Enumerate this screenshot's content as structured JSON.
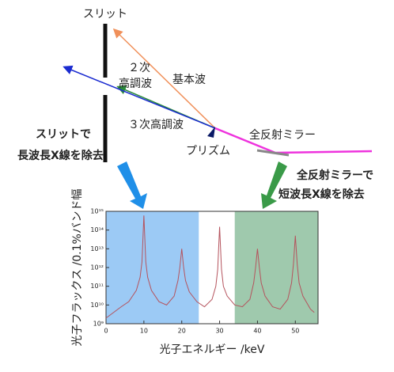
{
  "diagram": {
    "slit": "スリット",
    "ray_2nd": "２次",
    "ray_2nd_b": "高調波",
    "ray_fundamental": "基本波",
    "ray_3rd": "３次高調波",
    "mirror": "全反射ミラー",
    "prism": "プリズム",
    "note_slit_1": "スリットで",
    "note_slit_2": "長波長X線を除去",
    "note_mirror_1": "全反射ミラーで",
    "note_mirror_2": "短波長X線を除去"
  },
  "chart_data": {
    "type": "line",
    "xlabel": "光子エネルギー /keV",
    "ylabel": "光子フラックス /0.1%バンド幅",
    "log_y": true,
    "xlim": [
      0,
      56
    ],
    "ylim": [
      1000000000.0,
      1000000000000000.0
    ],
    "xticks": [
      0,
      10,
      20,
      30,
      40,
      50
    ],
    "yticks": [
      {
        "value": 1000000000.0,
        "label": "10⁹"
      },
      {
        "value": 10000000000.0,
        "label": "10¹⁰"
      },
      {
        "value": 100000000000.0,
        "label": "10¹¹"
      },
      {
        "value": 1000000000000.0,
        "label": "10¹²"
      },
      {
        "value": 10000000000000.0,
        "label": "10¹³"
      },
      {
        "value": 100000000000000.0,
        "label": "10¹⁴"
      },
      {
        "value": 1000000000000000.0,
        "label": "10¹⁵"
      }
    ],
    "regions": [
      {
        "from": 0,
        "to": 24.5,
        "color": "#9ccaf5"
      },
      {
        "from": 34,
        "to": 56,
        "color": "#9fc9ad"
      }
    ],
    "series": [
      {
        "color": "#b5535d",
        "x": [
          0,
          2,
          4,
          6,
          8,
          9,
          9.5,
          10,
          10.5,
          11,
          12,
          14,
          16,
          18,
          19,
          19.5,
          20,
          20.5,
          21,
          22,
          24,
          26,
          28,
          29,
          29.5,
          30,
          30.5,
          31,
          32,
          34,
          36,
          38,
          39,
          39.5,
          40,
          40.5,
          41,
          42,
          44,
          46,
          48,
          49,
          49.5,
          50,
          50.5,
          51,
          52,
          54,
          55
        ],
        "values": [
          2000000000.0,
          4000000000.0,
          8000000000.0,
          15000000000.0,
          60000000000.0,
          300000000000.0,
          2000000000000.0,
          600000000000000.0,
          2000000000000.0,
          300000000000.0,
          60000000000.0,
          15000000000.0,
          10000000000.0,
          30000000000.0,
          200000000000.0,
          1000000000000.0,
          10000000000000.0,
          1000000000000.0,
          200000000000.0,
          50000000000.0,
          15000000000.0,
          8000000000.0,
          20000000000.0,
          100000000000.0,
          800000000000.0,
          150000000000000.0,
          800000000000.0,
          100000000000.0,
          30000000000.0,
          10000000000.0,
          8000000000.0,
          20000000000.0,
          150000000000.0,
          1000000000000.0,
          10000000000000.0,
          1000000000000.0,
          150000000000.0,
          30000000000.0,
          8000000000.0,
          6000000000.0,
          20000000000.0,
          150000000000.0,
          1500000000000.0,
          50000000000000.0,
          1500000000000.0,
          150000000000.0,
          30000000000.0,
          6000000000.0,
          4000000000.0
        ]
      }
    ]
  }
}
